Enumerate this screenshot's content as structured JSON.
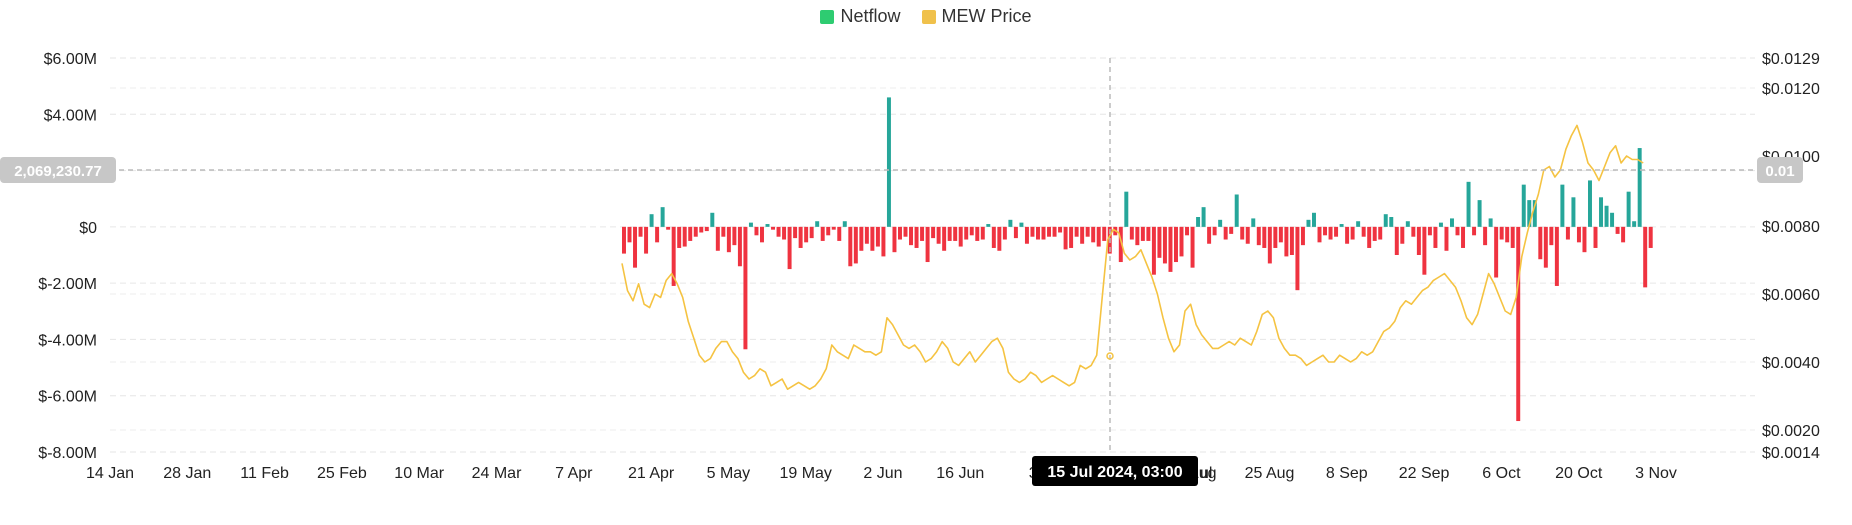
{
  "legend": {
    "netflow_label": "Netflow",
    "price_label": "MEW Price"
  },
  "colors": {
    "inflow": "#26a69a",
    "outflow": "#ef3340",
    "price": "#f5c342",
    "legend_netflow": "#2ecc71",
    "legend_price": "#f0c14b",
    "badge": "#bdbdbd",
    "tooltip": "#000000"
  },
  "crosshair": {
    "left_value": "2,069,230.77",
    "right_value": "0.01",
    "date_label": "15 Jul 2024, 03:00"
  },
  "chart_data": {
    "type": "bar",
    "x_start": "2024-04-15",
    "x_step_days": 1,
    "x_tick_labels": [
      "14 Jan",
      "28 Jan",
      "11 Feb",
      "25 Feb",
      "10 Mar",
      "24 Mar",
      "7 Apr",
      "21 Apr",
      "5 May",
      "19 May",
      "2 Jun",
      "16 Jun",
      "30",
      "",
      "11 Aug",
      "25 Aug",
      "8 Sep",
      "22 Sep",
      "6 Oct",
      "20 Oct",
      "3 Nov"
    ],
    "y_left": {
      "min": -8000000,
      "max": 6000000,
      "tick_values": [
        6000000,
        4000000,
        2000000,
        0,
        -2000000,
        -4000000,
        -6000000,
        -8000000
      ],
      "tick_labels": [
        "$6.00M",
        "$4.00M",
        "",
        "$0",
        "$-2.00M",
        "$-4.00M",
        "$-6.00M",
        "$-8.00M"
      ]
    },
    "y_right": {
      "min": 0.0014,
      "max": 0.0129,
      "tick_values": [
        0.0129,
        0.012,
        0.01,
        0.008,
        0.006,
        0.004,
        0.002,
        0.0014
      ],
      "tick_labels": [
        "$0.0129",
        "$0.0120",
        "$0.0100",
        "$0.0080",
        "$0.0060",
        "$0.0040",
        "$0.0020",
        "$0.0014"
      ]
    },
    "grid": true,
    "legend_position": "top-center",
    "series": [
      {
        "name": "Netflow",
        "type": "bar",
        "values": [
          -0.95,
          -0.55,
          -1.45,
          -0.35,
          -0.95,
          0.45,
          -0.55,
          0.7,
          -0.1,
          -2.1,
          -0.75,
          -0.7,
          -0.5,
          -0.35,
          -0.2,
          -0.15,
          0.5,
          -0.85,
          -0.35,
          -0.9,
          -0.65,
          -1.4,
          -4.35,
          0.15,
          -0.3,
          -0.55,
          0.1,
          -0.1,
          -0.35,
          -0.45,
          -1.5,
          -0.4,
          -0.75,
          -0.55,
          -0.4,
          0.2,
          -0.5,
          -0.3,
          -0.1,
          -0.5,
          0.2,
          -1.4,
          -1.3,
          -0.85,
          -0.6,
          -0.85,
          -0.7,
          -1.05,
          4.6,
          -0.9,
          -0.45,
          -0.35,
          -0.65,
          -0.75,
          -0.5,
          -1.25,
          -0.4,
          -0.6,
          -0.85,
          -0.5,
          -0.5,
          -0.7,
          -0.45,
          -0.3,
          -0.5,
          -0.45,
          0.1,
          -0.75,
          -0.85,
          -0.45,
          0.25,
          -0.4,
          0.15,
          -0.6,
          -0.35,
          -0.45,
          -0.45,
          -0.35,
          -0.35,
          -0.2,
          -0.8,
          -0.75,
          -0.35,
          -0.6,
          -0.35,
          -0.55,
          -0.7,
          -0.5,
          -0.95,
          -0.3,
          -1.25,
          1.25,
          -0.45,
          -0.65,
          -0.5,
          -0.5,
          -1.7,
          -1.1,
          -1.3,
          -1.6,
          -1.25,
          -1.05,
          -0.3,
          -1.45,
          0.35,
          0.7,
          -0.6,
          -0.3,
          0.25,
          -0.45,
          -0.25,
          1.15,
          -0.45,
          -0.6,
          0.3,
          -0.65,
          -0.75,
          -1.3,
          -0.75,
          -0.55,
          -1.05,
          -1.0,
          -2.25,
          -0.65,
          0.25,
          0.5,
          -0.55,
          -0.3,
          -0.45,
          -0.35,
          0.1,
          -0.6,
          -0.45,
          0.2,
          -0.35,
          -0.75,
          -0.5,
          -0.45,
          0.45,
          0.35,
          -1.0,
          -0.6,
          0.2,
          -0.35,
          -1.0,
          -1.7,
          -0.3,
          -0.75,
          0.15,
          -0.85,
          0.3,
          -0.3,
          -0.75,
          1.6,
          -0.3,
          0.95,
          -0.65,
          0.3,
          -1.8,
          -0.45,
          -0.55,
          -0.75,
          -6.9,
          1.5,
          0.95,
          0.95,
          -1.15,
          -1.45,
          -0.65,
          -2.1,
          1.5,
          -0.45,
          1.05,
          -0.55,
          -0.9,
          1.65,
          -0.75,
          1.05,
          0.75,
          0.5,
          -0.25,
          -0.55,
          1.25,
          0.2,
          2.8,
          -2.15,
          -0.75
        ],
        "units": "$M"
      },
      {
        "name": "MEW Price",
        "type": "line",
        "values": [
          0.0069,
          0.0061,
          0.0058,
          0.0063,
          0.0057,
          0.0056,
          0.006,
          0.0059,
          0.0064,
          0.0066,
          0.0063,
          0.0059,
          0.0052,
          0.0047,
          0.0042,
          0.004,
          0.0041,
          0.0044,
          0.0046,
          0.0046,
          0.0043,
          0.0041,
          0.0037,
          0.0035,
          0.0036,
          0.0038,
          0.0037,
          0.0033,
          0.0034,
          0.0035,
          0.0032,
          0.0033,
          0.0034,
          0.0033,
          0.0032,
          0.0033,
          0.0035,
          0.0038,
          0.0045,
          0.0043,
          0.0042,
          0.0041,
          0.0045,
          0.0044,
          0.0043,
          0.0043,
          0.0042,
          0.0043,
          0.0053,
          0.0051,
          0.0048,
          0.0045,
          0.0044,
          0.0045,
          0.0043,
          0.004,
          0.0041,
          0.0043,
          0.0046,
          0.0044,
          0.004,
          0.0039,
          0.0041,
          0.0043,
          0.004,
          0.0042,
          0.0044,
          0.0046,
          0.0047,
          0.0044,
          0.0037,
          0.0035,
          0.0034,
          0.0035,
          0.0037,
          0.0036,
          0.0034,
          0.0035,
          0.0036,
          0.0035,
          0.0034,
          0.0033,
          0.0034,
          0.0039,
          0.0038,
          0.0039,
          0.0042,
          0.0059,
          0.0076,
          0.0079,
          0.0078,
          0.0072,
          0.007,
          0.0071,
          0.0073,
          0.0069,
          0.0065,
          0.006,
          0.0053,
          0.0047,
          0.0043,
          0.0045,
          0.0055,
          0.0057,
          0.0051,
          0.0048,
          0.0046,
          0.0044,
          0.0044,
          0.0045,
          0.0046,
          0.0045,
          0.0047,
          0.0046,
          0.0045,
          0.0049,
          0.0054,
          0.0055,
          0.0053,
          0.0047,
          0.0044,
          0.0042,
          0.0042,
          0.0041,
          0.0039,
          0.004,
          0.0041,
          0.0042,
          0.004,
          0.004,
          0.0042,
          0.0041,
          0.004,
          0.0041,
          0.0043,
          0.0042,
          0.0043,
          0.0046,
          0.0049,
          0.005,
          0.0052,
          0.0056,
          0.0058,
          0.0057,
          0.0059,
          0.0061,
          0.0062,
          0.0064,
          0.0065,
          0.0066,
          0.0064,
          0.0062,
          0.0058,
          0.0053,
          0.0051,
          0.0054,
          0.006,
          0.0066,
          0.0063,
          0.0059,
          0.0055,
          0.0054,
          0.0059,
          0.0071,
          0.0078,
          0.0084,
          0.0089,
          0.0096,
          0.0097,
          0.0094,
          0.0096,
          0.0102,
          0.0106,
          0.0109,
          0.0104,
          0.0098,
          0.0096,
          0.0093,
          0.0097,
          0.0101,
          0.0103,
          0.0098,
          0.01,
          0.0099,
          0.0099,
          0.0098
        ],
        "units": "$"
      }
    ]
  }
}
